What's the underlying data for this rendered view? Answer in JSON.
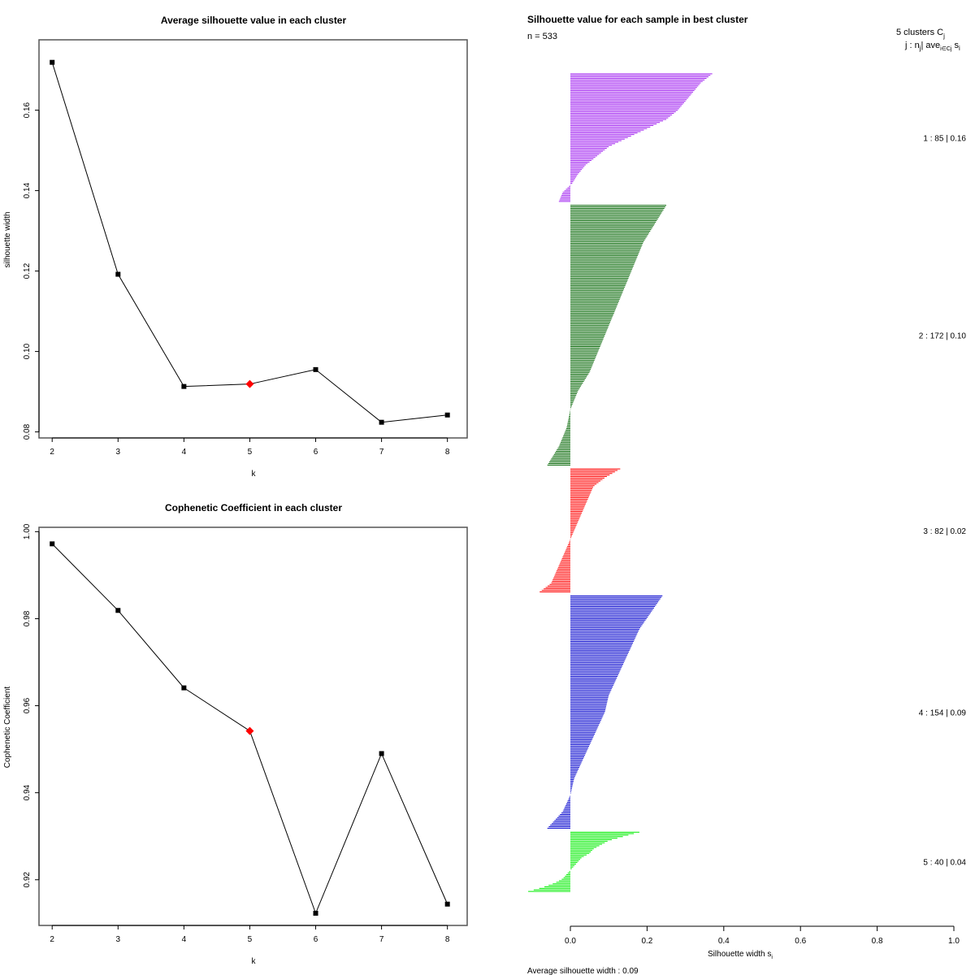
{
  "chart_data": [
    {
      "id": "silhouette_avg",
      "type": "line",
      "title": "Average silhouette value in each cluster",
      "xlabel": "k",
      "ylabel": "silhouette width",
      "x": [
        2,
        3,
        4,
        5,
        6,
        7,
        8
      ],
      "values": [
        0.1719,
        0.1192,
        0.0913,
        0.0919,
        0.0955,
        0.0824,
        0.0842
      ],
      "highlight_index": 3,
      "highlight_color": "#ff0000",
      "xticks": [
        "2",
        "3",
        "4",
        "5",
        "6",
        "7",
        "8"
      ],
      "yticks": [
        0.08,
        0.1,
        0.12,
        0.14,
        0.16
      ],
      "ytick_labels": [
        "0.08",
        "0.10",
        "0.12",
        "0.14",
        "0.16"
      ],
      "xlim": [
        1.8,
        8.3
      ],
      "ylim": [
        0.0785,
        0.1775
      ],
      "grid": false
    },
    {
      "id": "cophenetic",
      "type": "line",
      "title": "Cophenetic Coefficient in each cluster",
      "xlabel": "k",
      "ylabel": "Cophenetic Coefficient",
      "x": [
        2,
        3,
        4,
        5,
        6,
        7,
        8
      ],
      "values": [
        0.9972,
        0.9819,
        0.9641,
        0.9542,
        0.9123,
        0.949,
        0.9144
      ],
      "highlight_index": 3,
      "highlight_color": "#ff0000",
      "xticks": [
        "2",
        "3",
        "4",
        "5",
        "6",
        "7",
        "8"
      ],
      "yticks": [
        0.92,
        0.94,
        0.96,
        0.98,
        1.0
      ],
      "ytick_labels": [
        "0.92",
        "0.94",
        "0.96",
        "0.98",
        "1.00"
      ],
      "xlim": [
        1.8,
        8.3
      ],
      "ylim": [
        0.9095,
        1.001
      ],
      "grid": false
    },
    {
      "id": "silhouette_samples",
      "type": "bar",
      "orientation": "horizontal",
      "title": "Silhouette value for each sample in best cluster",
      "subtitle": "n = 533",
      "xlabel": "Silhouette width s",
      "xlabel_sub": "i",
      "xticks": [
        0.0,
        0.2,
        0.4,
        0.6,
        0.8,
        1.0
      ],
      "xtick_labels": [
        "0.0",
        "0.2",
        "0.4",
        "0.6",
        "0.8",
        "1.0"
      ],
      "xlim": [
        0,
        1
      ],
      "footer": "Average silhouette width :  0.09",
      "legend_header": "5  clusters  C",
      "legend_header_sub": "j",
      "legend_sub_header": "j :  n",
      "legend_sub_header_rest": "| ave",
      "legend_sub_header_sub2": "i∈Cj",
      "legend_sub_header_end": " s",
      "legend_sub_header_end_sub": "i",
      "clusters": [
        {
          "label": "1 :   85  |  0.16",
          "j": 1,
          "n": 85,
          "avg": 0.16,
          "color": "#a020f0",
          "profile": [
            0.37,
            0.34,
            0.32,
            0.3,
            0.28,
            0.25,
            0.2,
            0.15,
            0.1,
            0.07,
            0.04,
            0.02,
            0.005,
            -0.02,
            -0.03
          ]
        },
        {
          "label": "2 :   172  |  0.10",
          "j": 2,
          "n": 172,
          "avg": 0.1,
          "color": "#006400",
          "profile": [
            0.25,
            0.22,
            0.19,
            0.17,
            0.15,
            0.13,
            0.11,
            0.09,
            0.07,
            0.05,
            0.02,
            0.0,
            -0.01,
            -0.03,
            -0.06
          ]
        },
        {
          "label": "3 :   82  |  0.02",
          "j": 3,
          "n": 82,
          "avg": 0.02,
          "color": "#ff0000",
          "profile": [
            0.13,
            0.09,
            0.06,
            0.05,
            0.04,
            0.03,
            0.02,
            0.01,
            0.0,
            -0.01,
            -0.02,
            -0.03,
            -0.04,
            -0.05,
            -0.08
          ]
        },
        {
          "label": "4 :   154  |  0.09",
          "j": 4,
          "n": 154,
          "avg": 0.09,
          "color": "#0000cd",
          "profile": [
            0.24,
            0.21,
            0.18,
            0.16,
            0.14,
            0.12,
            0.1,
            0.09,
            0.07,
            0.05,
            0.03,
            0.01,
            0.0,
            -0.02,
            -0.06
          ]
        },
        {
          "label": "5 :   40  |  0.04",
          "j": 5,
          "n": 40,
          "avg": 0.04,
          "color": "#00ee00",
          "profile": [
            0.18,
            0.14,
            0.1,
            0.08,
            0.06,
            0.05,
            0.03,
            0.02,
            0.01,
            0.0,
            -0.01,
            -0.02,
            -0.04,
            -0.07,
            -0.11
          ]
        }
      ]
    }
  ]
}
